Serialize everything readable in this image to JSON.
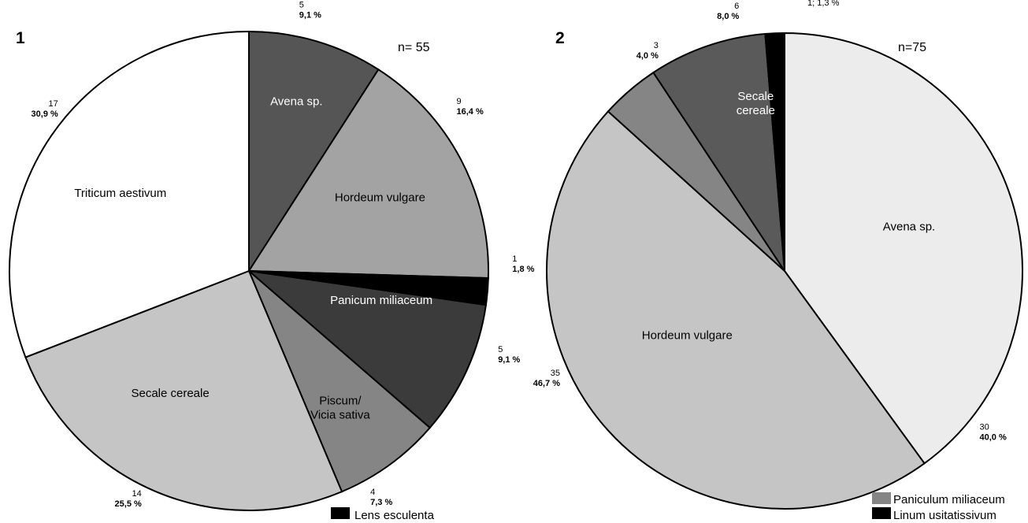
{
  "chart_data": [
    {
      "type": "pie",
      "panel_label": "1",
      "n_label": "n= 55",
      "slices": [
        {
          "label": "Avena sp.",
          "count": "5",
          "percent_label": "9,1 %",
          "value": 9.1,
          "color": "#555555"
        },
        {
          "label": "Hordeum vulgare",
          "count": "9",
          "percent_label": "16,4 %",
          "value": 16.4,
          "color": "#a3a3a3"
        },
        {
          "label": "",
          "count": "1",
          "percent_label": "1,8 %",
          "value": 1.8,
          "color": "#000000"
        },
        {
          "label": "Panicum miliaceum",
          "count": "5",
          "percent_label": "9,1 %",
          "value": 9.1,
          "color": "#3b3b3b"
        },
        {
          "label": "Piscum/ Vicia sativa",
          "count": "4",
          "percent_label": "7,3 %",
          "value": 7.3,
          "color": "#858585"
        },
        {
          "label": "Secale cereale",
          "count": "14",
          "percent_label": "25,5 %",
          "value": 25.5,
          "color": "#c5c5c5"
        },
        {
          "label": "Triticum aestivum",
          "count": "17",
          "percent_label": "30,9 %",
          "value": 30.9,
          "color": "#ffffff"
        }
      ],
      "legend": [
        {
          "label": "Lens esculenta",
          "color": "#000000"
        }
      ]
    },
    {
      "type": "pie",
      "panel_label": "2",
      "n_label": "n=75",
      "slices": [
        {
          "label": "Avena sp.",
          "count": "30",
          "percent_label": "40,0 %",
          "value": 40.0,
          "color": "#ececec"
        },
        {
          "label": "Hordeum vulgare",
          "count": "35",
          "percent_label": "46,7 %",
          "value": 46.7,
          "color": "#c5c5c5"
        },
        {
          "label": "",
          "count": "3",
          "percent_label": "4,0 %",
          "value": 4.0,
          "color": "#858585"
        },
        {
          "label": "Secale cereale",
          "count": "6",
          "percent_label": "8,0 %",
          "value": 8.0,
          "color": "#5a5a5a"
        },
        {
          "label": "",
          "count": "",
          "percent_label": "1; 1,3 %",
          "value": 1.3,
          "color": "#000000"
        }
      ],
      "legend": [
        {
          "label": "Paniculum miliaceum",
          "color": "#858585"
        },
        {
          "label": "Linum usitatissivum",
          "color": "#000000"
        }
      ]
    }
  ]
}
